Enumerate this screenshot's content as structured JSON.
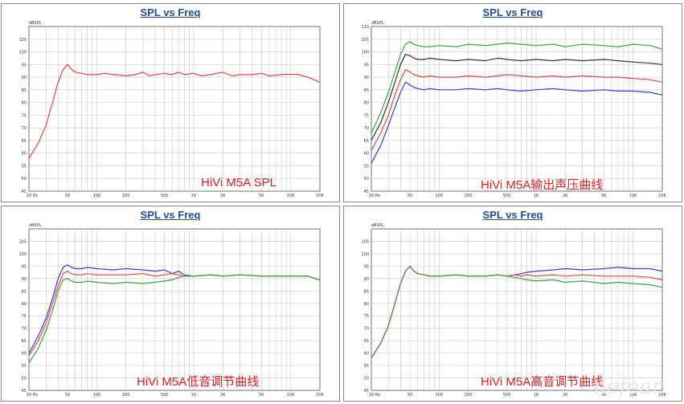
{
  "chart_data": [
    {
      "type": "line",
      "title": "SPL vs Freq",
      "ylabel": "dBSPL",
      "ylim": [
        45,
        110
      ],
      "y_ticks": [
        45,
        50,
        55,
        60,
        65,
        70,
        75,
        80,
        85,
        90,
        95,
        100,
        105
      ],
      "x_ticks": [
        "20 Hz",
        "50",
        "100",
        "200",
        "500",
        "1K",
        "2K",
        "5K",
        "10K",
        "20K"
      ],
      "annotation": "HiVi M5A SPL",
      "series": [
        {
          "color": "#e8463f",
          "x": [
            20,
            25,
            30,
            35,
            40,
            45,
            50,
            55,
            60,
            70,
            80,
            100,
            120,
            150,
            200,
            250,
            300,
            350,
            400,
            500,
            600,
            700,
            800,
            1000,
            1200,
            1500,
            2000,
            2500,
            3000,
            4000,
            5000,
            6000,
            8000,
            10000,
            12000,
            15000,
            20000
          ],
          "values": [
            58,
            64,
            71,
            80,
            88,
            93,
            95,
            93,
            92,
            91.5,
            91,
            91,
            91.5,
            91,
            90.5,
            91,
            92,
            90.5,
            91,
            91.5,
            91,
            92,
            91,
            91.5,
            90.5,
            91,
            92,
            90.5,
            91,
            91,
            91.5,
            90.5,
            91,
            91.2,
            91,
            90,
            88
          ]
        }
      ]
    },
    {
      "type": "line",
      "title": "SPL vs Freq",
      "ylabel": "dBSPL",
      "ylim": [
        45,
        110
      ],
      "y_ticks": [
        45,
        50,
        55,
        60,
        65,
        70,
        75,
        80,
        85,
        90,
        95,
        100,
        105,
        110
      ],
      "x_ticks": [
        "20 Hz",
        "50",
        "100",
        "200",
        "500",
        "1K",
        "2K",
        "5K",
        "10K",
        "20K"
      ],
      "annotation": "HiVi M5A输出声压曲线",
      "series": [
        {
          "color": "#3aa33a",
          "x": [
            20,
            25,
            30,
            35,
            40,
            45,
            50,
            55,
            60,
            70,
            80,
            100,
            150,
            200,
            300,
            400,
            500,
            700,
            1000,
            1500,
            2000,
            3000,
            5000,
            7000,
            10000,
            15000,
            20000
          ],
          "values": [
            68,
            76,
            84,
            92,
            99,
            103,
            104,
            103,
            102.5,
            102,
            102,
            102.5,
            102,
            103,
            102.5,
            103,
            103.5,
            103,
            102.5,
            103,
            102,
            103,
            102.5,
            102,
            103,
            102.5,
            101
          ]
        },
        {
          "color": "#333333",
          "x": [
            20,
            25,
            30,
            35,
            40,
            45,
            50,
            55,
            60,
            70,
            80,
            100,
            150,
            200,
            300,
            400,
            500,
            700,
            1000,
            1500,
            2000,
            3000,
            5000,
            7000,
            10000,
            15000,
            20000
          ],
          "values": [
            65,
            72,
            80,
            88,
            95,
            99,
            98.5,
            97.5,
            97,
            97,
            97.5,
            97,
            96.5,
            97,
            96.5,
            97.5,
            97,
            96.5,
            97,
            96.5,
            97,
            96.5,
            97,
            96.5,
            96,
            95.5,
            95
          ]
        },
        {
          "color": "#e8463f",
          "x": [
            20,
            25,
            30,
            35,
            40,
            45,
            50,
            55,
            60,
            70,
            80,
            100,
            150,
            200,
            300,
            400,
            500,
            700,
            1000,
            1500,
            2000,
            3000,
            5000,
            7000,
            10000,
            15000,
            20000
          ],
          "values": [
            61,
            68,
            75,
            83,
            89,
            93,
            92,
            91,
            90.5,
            90,
            90.5,
            90,
            90,
            90.5,
            90,
            90.5,
            91,
            90.5,
            90,
            90.5,
            90,
            90.5,
            90,
            90,
            89.5,
            89,
            88
          ]
        },
        {
          "color": "#3a3ad8",
          "x": [
            20,
            25,
            30,
            35,
            40,
            45,
            50,
            55,
            60,
            70,
            80,
            100,
            150,
            200,
            300,
            400,
            500,
            700,
            1000,
            1500,
            2000,
            3000,
            5000,
            7000,
            10000,
            15000,
            20000
          ],
          "values": [
            56,
            63,
            71,
            78,
            84,
            88,
            87,
            86,
            85.5,
            85,
            85.5,
            85,
            85,
            85.5,
            85,
            85.5,
            85,
            84.5,
            85,
            85.5,
            85,
            84.5,
            85,
            84.5,
            84.5,
            84,
            83
          ]
        }
      ]
    },
    {
      "type": "line",
      "title": "SPL vs Freq",
      "ylabel": "dBSPL",
      "ylim": [
        45,
        110
      ],
      "y_ticks": [
        45,
        50,
        55,
        60,
        65,
        70,
        75,
        80,
        85,
        90,
        95,
        100,
        105
      ],
      "x_ticks": [
        "20 Hz",
        "50",
        "100",
        "200",
        "500",
        "1K",
        "2K",
        "5K",
        "10K",
        "20K"
      ],
      "annotation": "HiVi M5A低音调节曲线",
      "series": [
        {
          "color": "#3a3ad8",
          "x": [
            20,
            25,
            30,
            35,
            40,
            45,
            50,
            55,
            60,
            70,
            80,
            100,
            150,
            200,
            300,
            400,
            500,
            600,
            700,
            800,
            1000,
            1500,
            2000,
            3000,
            5000,
            10000,
            15000,
            20000
          ],
          "values": [
            60,
            67,
            74,
            82,
            90,
            94.5,
            95.5,
            94.5,
            94,
            94,
            94.5,
            94,
            93.5,
            94,
            93.5,
            93,
            93.5,
            92,
            93,
            91.5,
            91,
            91.5,
            91,
            91.5,
            91,
            91,
            91,
            89.5
          ]
        },
        {
          "color": "#e8463f",
          "x": [
            20,
            25,
            30,
            35,
            40,
            45,
            50,
            55,
            60,
            70,
            80,
            100,
            150,
            200,
            300,
            400,
            500,
            600,
            700,
            800,
            1000,
            1500,
            2000,
            3000,
            5000,
            10000,
            15000,
            20000
          ],
          "values": [
            59,
            65,
            72,
            80,
            87,
            92,
            93,
            92,
            91.5,
            91.5,
            92,
            91.5,
            91.5,
            91.5,
            92,
            91,
            91.5,
            92,
            91.5,
            91,
            91,
            91.5,
            91,
            91.5,
            91,
            91,
            91,
            89.5
          ]
        },
        {
          "color": "#3aa33a",
          "x": [
            20,
            25,
            30,
            35,
            40,
            45,
            50,
            55,
            60,
            70,
            80,
            100,
            150,
            200,
            300,
            400,
            500,
            600,
            700,
            800,
            1000,
            1500,
            2000,
            3000,
            5000,
            10000,
            15000,
            20000
          ],
          "values": [
            56,
            62,
            69,
            77,
            85,
            89.5,
            90,
            89,
            88.5,
            88.5,
            89,
            88.5,
            88,
            88.5,
            88,
            88.5,
            89,
            89.5,
            90.5,
            91,
            91,
            91.5,
            91,
            91.5,
            91,
            91,
            91,
            89.5
          ]
        }
      ]
    },
    {
      "type": "line",
      "title": "SPL vs Freq",
      "ylabel": "dBSPL",
      "ylim": [
        45,
        110
      ],
      "y_ticks": [
        45,
        50,
        55,
        60,
        65,
        70,
        75,
        80,
        85,
        90,
        95,
        100,
        105
      ],
      "x_ticks": [
        "20 Hz",
        "50",
        "100",
        "200",
        "500",
        "1K",
        "2K",
        "5K",
        "10K",
        "20K"
      ],
      "annotation": "HiVi M5A高音调节曲线",
      "series": [
        {
          "color": "#3a3ad8",
          "x": [
            20,
            25,
            30,
            35,
            40,
            45,
            50,
            55,
            60,
            70,
            80,
            100,
            150,
            200,
            300,
            400,
            500,
            600,
            700,
            800,
            1000,
            1500,
            2000,
            3000,
            5000,
            7000,
            10000,
            15000,
            20000
          ],
          "values": [
            58,
            64,
            71,
            80,
            88,
            93,
            95,
            93,
            92,
            91.5,
            91,
            91,
            91.5,
            91,
            91,
            91.5,
            91,
            91.5,
            92,
            92.5,
            93,
            93.5,
            94,
            93.5,
            94,
            94.5,
            94,
            94,
            93
          ]
        },
        {
          "color": "#e8463f",
          "x": [
            20,
            25,
            30,
            35,
            40,
            45,
            50,
            55,
            60,
            70,
            80,
            100,
            150,
            200,
            300,
            400,
            500,
            600,
            700,
            800,
            1000,
            1500,
            2000,
            3000,
            5000,
            7000,
            10000,
            15000,
            20000
          ],
          "values": [
            58,
            64,
            71,
            80,
            88,
            93,
            95,
            93,
            92,
            91.5,
            91,
            91,
            91.5,
            91,
            91,
            91.5,
            91,
            91.5,
            91,
            91.5,
            91,
            91.5,
            91,
            91.5,
            91,
            91,
            91,
            90.5,
            89.5
          ]
        },
        {
          "color": "#3aa33a",
          "x": [
            20,
            25,
            30,
            35,
            40,
            45,
            50,
            55,
            60,
            70,
            80,
            100,
            150,
            200,
            300,
            400,
            500,
            600,
            700,
            800,
            1000,
            1500,
            2000,
            3000,
            5000,
            7000,
            10000,
            15000,
            20000
          ],
          "values": [
            58,
            64,
            71,
            80,
            88,
            93,
            95,
            93,
            92,
            91.5,
            91,
            91,
            91.5,
            91,
            91,
            91.5,
            91,
            90.5,
            90,
            89.5,
            89,
            89.5,
            88.5,
            89,
            88,
            88.5,
            88,
            87.5,
            86.5
          ]
        }
      ]
    }
  ],
  "watermark": "nefear"
}
